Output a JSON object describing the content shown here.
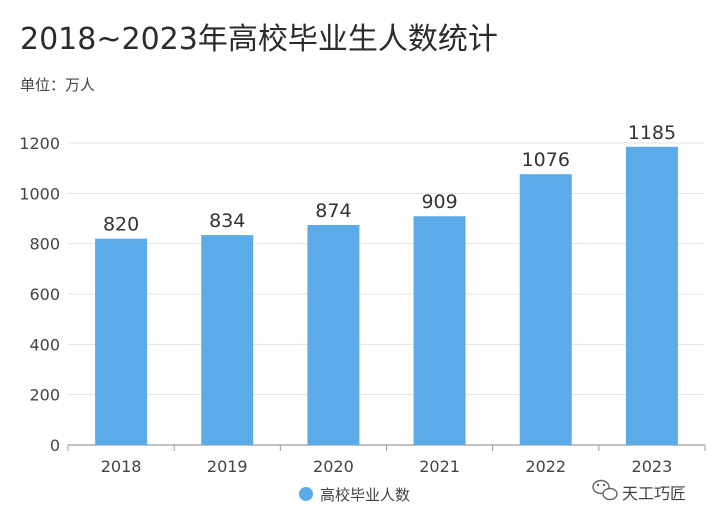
{
  "chart_data": {
    "type": "bar",
    "title": "2018~2023年高校毕业生人数统计",
    "unit_label": "单位：万人",
    "categories": [
      "2018",
      "2019",
      "2020",
      "2021",
      "2022",
      "2023"
    ],
    "series": [
      {
        "name": "高校毕业人数",
        "values": [
          820,
          834,
          874,
          909,
          1076,
          1185
        ]
      }
    ],
    "ylim": [
      0,
      1200
    ],
    "yticks": [
      0,
      200,
      400,
      600,
      800,
      1000,
      1200
    ],
    "grid": true,
    "legend": "bottom",
    "bar_color": "#5aabe8"
  },
  "watermark": {
    "text": "天工巧匠",
    "icon": "wechat-icon"
  }
}
